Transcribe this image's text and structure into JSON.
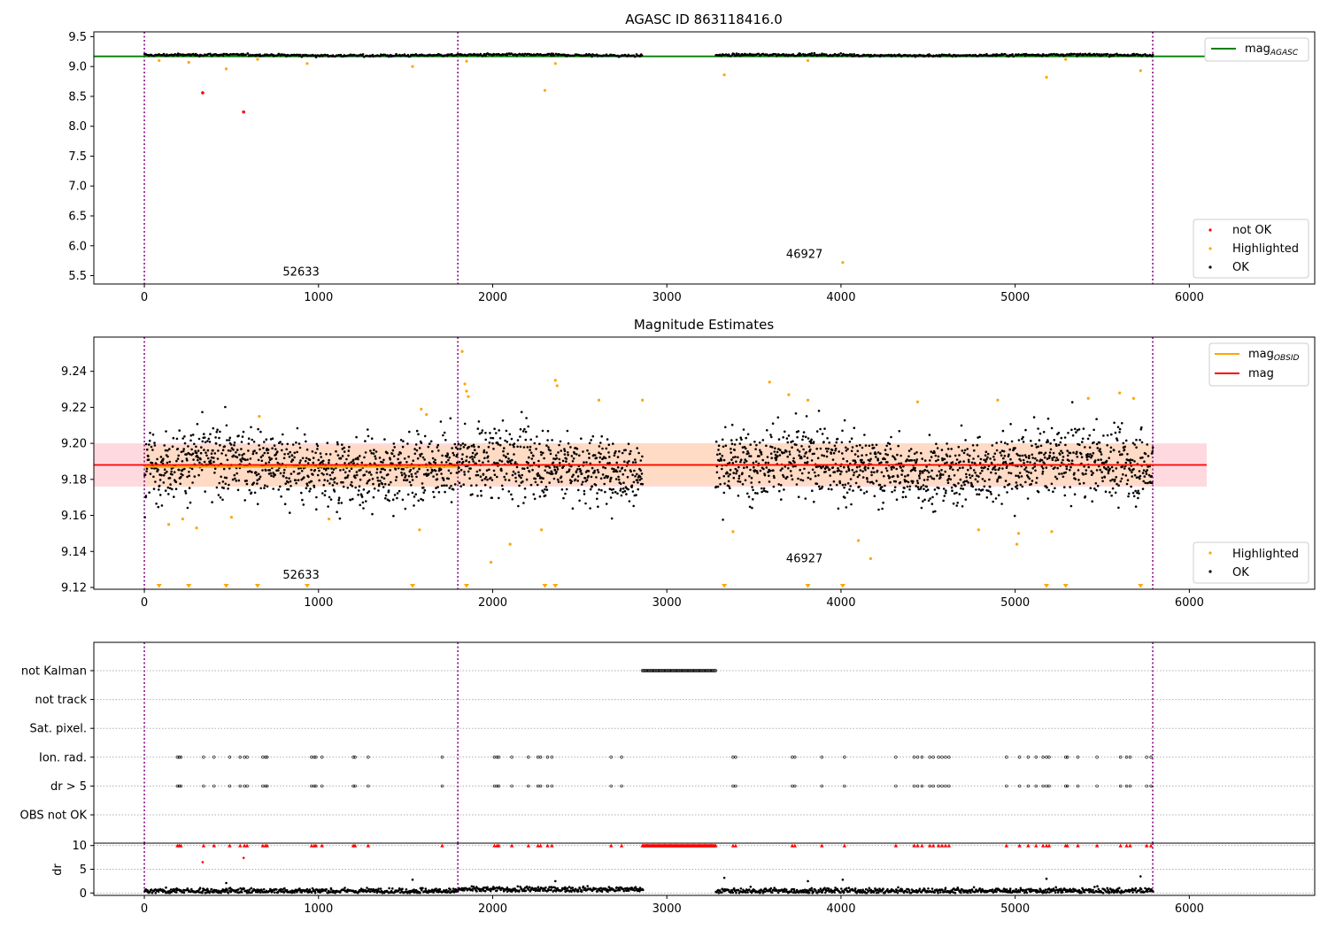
{
  "colors": {
    "ok": "#000000",
    "highlighted": "#ffa500",
    "not_ok": "#ff0000",
    "mag_agasc": "#008000",
    "mag_obsid": "#ffa500",
    "mag": "#ff0000",
    "obs_boundary": "#800080",
    "band": "#ffc0cb",
    "band_obs": "#ffdab9",
    "grid": "#b0b0b0"
  },
  "chart_data": [
    {
      "type": "scatter",
      "title": "AGASC ID 863118416.0",
      "xlim": [
        -290,
        6720
      ],
      "ylim": [
        5.36,
        9.58
      ],
      "x_ticks": [
        0,
        1000,
        2000,
        3000,
        4000,
        5000,
        6000
      ],
      "y_ticks": [
        5.5,
        6.0,
        6.5,
        7.0,
        7.5,
        8.0,
        8.5,
        9.0,
        9.5
      ],
      "y_tick_labels": [
        "5.5",
        "6.0",
        "6.5",
        "7.0",
        "7.5",
        "8.0",
        "8.5",
        "9.0",
        "9.5"
      ],
      "obs_boundaries": [
        0,
        1800,
        5790
      ],
      "obsid_labels": [
        {
          "text": "52633",
          "x": 900,
          "y": 5.5
        },
        {
          "text": "46927",
          "x": 3790,
          "y": 5.8
        }
      ],
      "mag_agasc": 9.17,
      "segments": [
        [
          0,
          2860
        ],
        [
          3280,
          5790
        ]
      ],
      "ok_mean": 9.19,
      "ok_spread": 0.02,
      "highlighted": [
        [
          85,
          9.1
        ],
        [
          255,
          9.07
        ],
        [
          470,
          8.96
        ],
        [
          650,
          9.12
        ],
        [
          935,
          9.05
        ],
        [
          1540,
          9.0
        ],
        [
          1850,
          9.09
        ],
        [
          2300,
          8.6
        ],
        [
          2360,
          9.05
        ],
        [
          3330,
          8.86
        ],
        [
          3810,
          9.1
        ],
        [
          4010,
          5.72
        ],
        [
          5180,
          8.82
        ],
        [
          5290,
          9.12
        ],
        [
          5720,
          8.93
        ]
      ],
      "not_ok": [
        [
          335,
          8.56
        ],
        [
          570,
          8.24
        ]
      ],
      "legend_top": [
        "mag_AGASC"
      ],
      "legend_bottom": [
        "not OK",
        "Highlighted",
        "OK"
      ]
    },
    {
      "type": "scatter",
      "title": "Magnitude Estimates",
      "xlim": [
        -290,
        6720
      ],
      "ylim": [
        9.119,
        9.259
      ],
      "x_ticks": [
        0,
        1000,
        2000,
        3000,
        4000,
        5000,
        6000
      ],
      "y_ticks": [
        9.12,
        9.14,
        9.16,
        9.18,
        9.2,
        9.22,
        9.24
      ],
      "y_tick_labels": [
        "9.12",
        "9.14",
        "9.16",
        "9.18",
        "9.20",
        "9.22",
        "9.24"
      ],
      "obs_boundaries": [
        0,
        1800,
        5790
      ],
      "obsid_labels": [
        {
          "text": "52633",
          "x": 900,
          "y": 9.125
        },
        {
          "text": "46927",
          "x": 3790,
          "y": 9.134
        }
      ],
      "mag": 9.188,
      "mag_band": [
        9.176,
        9.2
      ],
      "mag_band_xrange": [
        -290,
        6100
      ],
      "mag_obsid": [
        {
          "x": [
            0,
            1800
          ],
          "value": 9.187,
          "band": [
            9.176,
            9.199
          ]
        },
        {
          "x": [
            1800,
            5790
          ],
          "value": 9.188,
          "band": [
            9.177,
            9.2
          ]
        }
      ],
      "segments": [
        [
          0,
          2860
        ],
        [
          3280,
          5790
        ]
      ],
      "ok_mean": 9.187,
      "ok_spread": 0.0095,
      "highlighted": [
        [
          140,
          9.155
        ],
        [
          220,
          9.158
        ],
        [
          300,
          9.153
        ],
        [
          500,
          9.159
        ],
        [
          660,
          9.215
        ],
        [
          1060,
          9.158
        ],
        [
          1580,
          9.152
        ],
        [
          1590,
          9.219
        ],
        [
          1620,
          9.216
        ],
        [
          1825,
          9.251
        ],
        [
          1840,
          9.233
        ],
        [
          1850,
          9.229
        ],
        [
          1860,
          9.226
        ],
        [
          1990,
          9.134
        ],
        [
          2100,
          9.144
        ],
        [
          2280,
          9.152
        ],
        [
          2360,
          9.235
        ],
        [
          2370,
          9.232
        ],
        [
          2610,
          9.224
        ],
        [
          2860,
          9.224
        ],
        [
          3380,
          9.151
        ],
        [
          3590,
          9.234
        ],
        [
          3700,
          9.227
        ],
        [
          3810,
          9.224
        ],
        [
          4100,
          9.146
        ],
        [
          4170,
          9.136
        ],
        [
          4440,
          9.223
        ],
        [
          4790,
          9.152
        ],
        [
          4900,
          9.224
        ],
        [
          5010,
          9.144
        ],
        [
          5020,
          9.15
        ],
        [
          5210,
          9.151
        ],
        [
          5420,
          9.225
        ],
        [
          5600,
          9.228
        ],
        [
          5680,
          9.225
        ]
      ],
      "below_range": [
        85,
        255,
        470,
        650,
        935,
        1540,
        1850,
        2300,
        2360,
        3330,
        3810,
        4010,
        5180,
        5290,
        5720
      ],
      "legend_top": [
        "mag_OBSID",
        "mag"
      ],
      "legend_bottom": [
        "Highlighted",
        "OK"
      ]
    },
    {
      "type": "scatter",
      "title": "",
      "xlim": [
        -290,
        6720
      ],
      "flag_rows": [
        "not Kalman",
        "not track",
        "Sat. pixel.",
        "Ion. rad.",
        "dr > 5",
        "OBS not OK"
      ],
      "obs_boundaries": [
        0,
        1800,
        5790
      ],
      "not_kalman_range": [
        2860,
        3280
      ],
      "ion_rad_times": [
        190,
        200,
        210,
        340,
        400,
        490,
        550,
        575,
        590,
        680,
        695,
        705,
        960,
        975,
        985,
        1020,
        1200,
        1210,
        1285,
        1710,
        2010,
        2025,
        2035,
        2110,
        2205,
        2260,
        2275,
        2315,
        2340,
        2680,
        2740,
        3380,
        3395,
        3720,
        3735,
        3890,
        4020,
        4315,
        4420,
        4440,
        4465,
        4510,
        4530,
        4560,
        4580,
        4600,
        4620,
        4950,
        5025,
        5075,
        5120,
        5160,
        5180,
        5195,
        5290,
        5300,
        5360,
        5470,
        5605,
        5640,
        5660,
        5755,
        5780
      ],
      "dr_xlim": [
        -290,
        6720
      ],
      "dr_ylim": [
        -0.5,
        10.5
      ],
      "dr_ticks": [
        0,
        5,
        10
      ],
      "dr_tick_labels": [
        "0",
        "5",
        "10"
      ],
      "dr_ylabel": "dr",
      "dr_x_ticks": [
        0,
        1000,
        2000,
        3000,
        4000,
        5000,
        6000
      ],
      "dr_outliers": [
        [
          335,
          6.5
        ],
        [
          570,
          7.4
        ],
        [
          470,
          2.1
        ],
        [
          1540,
          2.8
        ],
        [
          2360,
          2.5
        ],
        [
          3330,
          3.2
        ],
        [
          3810,
          2.5
        ],
        [
          4010,
          2.8
        ],
        [
          5180,
          3.0
        ],
        [
          5720,
          3.5
        ]
      ]
    }
  ]
}
